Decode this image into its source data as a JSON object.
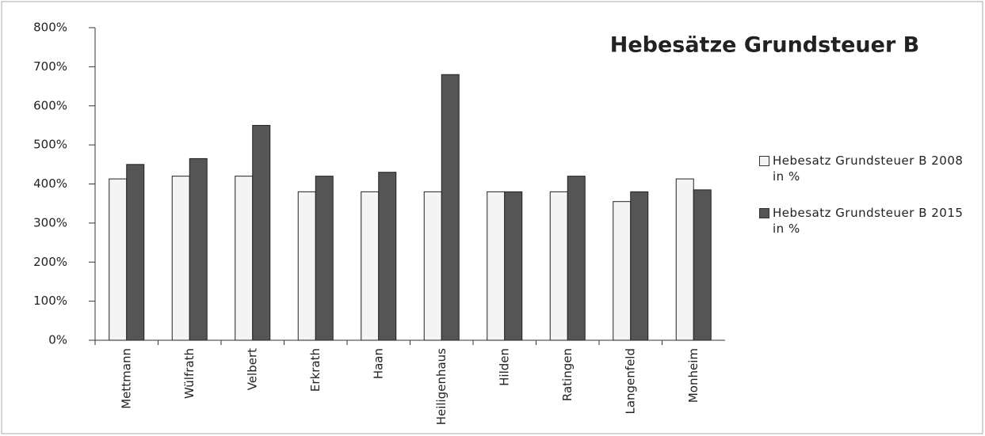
{
  "chart_data": {
    "type": "bar",
    "title": "Hebesätze Grundsteuer B",
    "categories": [
      "Mettmann",
      "Wülfrath",
      "Velbert",
      "Erkrath",
      "Haan",
      "Heiligenhaus",
      "Hilden",
      "Ratingen",
      "Langenfeld",
      "Monheim"
    ],
    "series": [
      {
        "name": "Hebesatz Grundsteuer B 2008 in %",
        "color": "#f4f4f4",
        "values": [
          413,
          420,
          420,
          380,
          380,
          380,
          380,
          380,
          355,
          413
        ]
      },
      {
        "name": "Hebesatz Grundsteuer B 2015 in %",
        "color": "#555555",
        "values": [
          450,
          465,
          550,
          420,
          430,
          680,
          380,
          420,
          380,
          385
        ]
      }
    ],
    "ylim": [
      0,
      800
    ],
    "yticks": [
      {
        "value": 0,
        "label": "0%"
      },
      {
        "value": 100,
        "label": "100%"
      },
      {
        "value": 200,
        "label": "200%"
      },
      {
        "value": 300,
        "label": "300%"
      },
      {
        "value": 400,
        "label": "400%"
      },
      {
        "value": 500,
        "label": "500%"
      },
      {
        "value": 600,
        "label": "600%"
      },
      {
        "value": 700,
        "label": "700%"
      },
      {
        "value": 800,
        "label": "800%"
      }
    ],
    "legend": "right"
  }
}
